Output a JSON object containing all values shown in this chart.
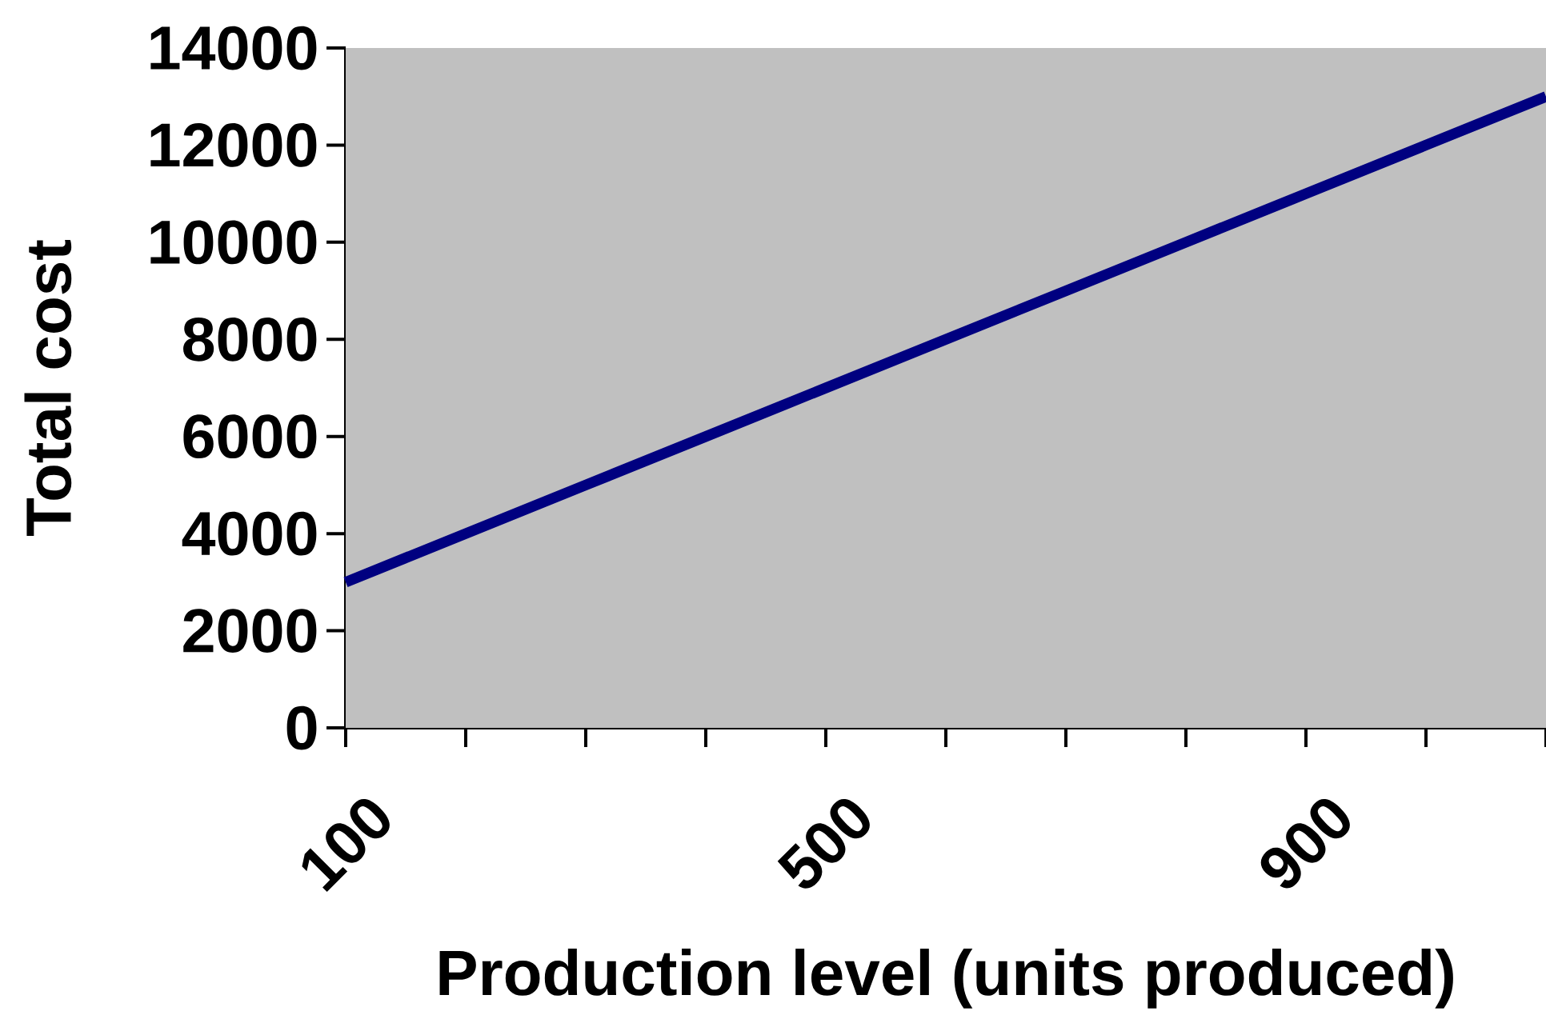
{
  "chart_data": {
    "type": "line",
    "xlabel": "Production level (units produced)",
    "ylabel": "Total cost",
    "categories": [
      "100",
      null,
      null,
      null,
      "500",
      null,
      null,
      null,
      "900",
      null,
      null
    ],
    "series": [
      {
        "color": "#000080",
        "values": [
          3000,
          4000,
          5000,
          6000,
          7000,
          8000,
          9000,
          10000,
          11000,
          12000,
          13000
        ]
      }
    ],
    "ylim": [
      0,
      14000
    ],
    "yticks": [
      0,
      2000,
      4000,
      6000,
      8000,
      10000,
      12000,
      14000
    ]
  }
}
